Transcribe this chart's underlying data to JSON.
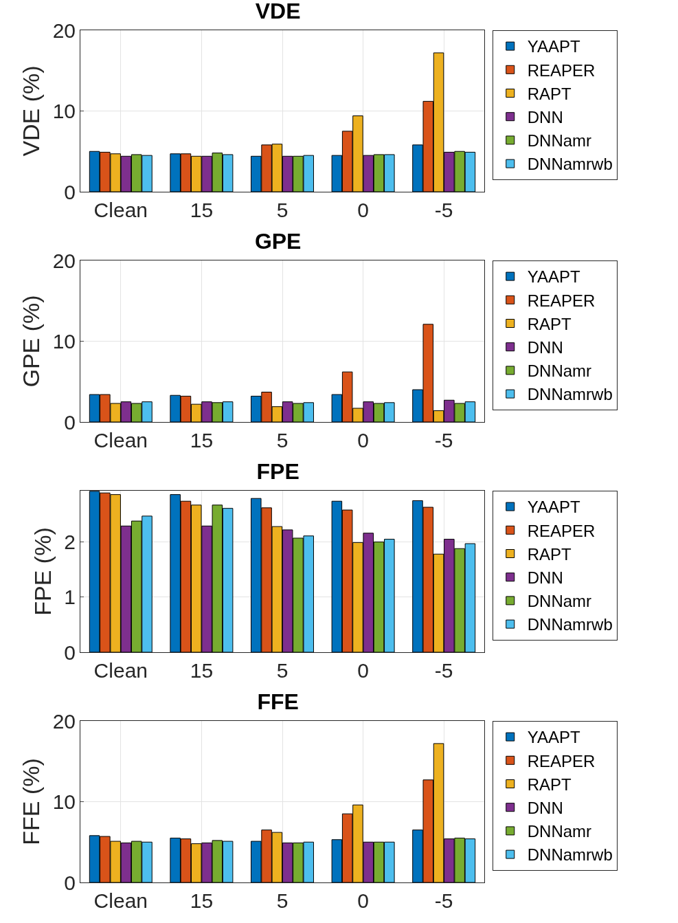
{
  "chart_data": [
    {
      "type": "bar",
      "title": "VDE",
      "ylabel": "VDE (%)",
      "categories": [
        "Clean",
        "15",
        "5",
        "0",
        "-5"
      ],
      "ylim": [
        0,
        20
      ],
      "yticks": [
        0,
        10,
        20
      ],
      "grid": true,
      "legend": "top right",
      "series": [
        {
          "name": "YAAPT",
          "color": "#0072bd",
          "values": [
            5.0,
            4.7,
            4.4,
            4.5,
            5.8
          ]
        },
        {
          "name": "REAPER",
          "color": "#d95319",
          "values": [
            4.9,
            4.7,
            5.8,
            7.5,
            11.2
          ]
        },
        {
          "name": "RAPT",
          "color": "#edb120",
          "values": [
            4.7,
            4.4,
            5.9,
            9.4,
            17.2
          ]
        },
        {
          "name": "DNN",
          "color": "#7e2f8e",
          "values": [
            4.4,
            4.4,
            4.4,
            4.5,
            4.9
          ]
        },
        {
          "name": "DNNamr",
          "color": "#77ac30",
          "values": [
            4.6,
            4.8,
            4.4,
            4.6,
            5.0
          ]
        },
        {
          "name": "DNNamrwb",
          "color": "#4dbeee",
          "values": [
            4.5,
            4.6,
            4.5,
            4.6,
            4.9
          ]
        }
      ]
    },
    {
      "type": "bar",
      "title": "GPE",
      "ylabel": "GPE (%)",
      "categories": [
        "Clean",
        "15",
        "5",
        "0",
        "-5"
      ],
      "ylim": [
        0,
        20
      ],
      "yticks": [
        0,
        10,
        20
      ],
      "grid": true,
      "legend": "top right",
      "series": [
        {
          "name": "YAAPT",
          "color": "#0072bd",
          "values": [
            3.4,
            3.3,
            3.2,
            3.4,
            4.0
          ]
        },
        {
          "name": "REAPER",
          "color": "#d95319",
          "values": [
            3.4,
            3.2,
            3.7,
            6.2,
            12.1
          ]
        },
        {
          "name": "RAPT",
          "color": "#edb120",
          "values": [
            2.3,
            2.2,
            1.9,
            1.7,
            1.4
          ]
        },
        {
          "name": "DNN",
          "color": "#7e2f8e",
          "values": [
            2.5,
            2.5,
            2.5,
            2.5,
            2.7
          ]
        },
        {
          "name": "DNNamr",
          "color": "#77ac30",
          "values": [
            2.3,
            2.4,
            2.3,
            2.3,
            2.3
          ]
        },
        {
          "name": "DNNamrwb",
          "color": "#4dbeee",
          "values": [
            2.5,
            2.5,
            2.4,
            2.4,
            2.5
          ]
        }
      ]
    },
    {
      "type": "bar",
      "title": "FPE",
      "ylabel": "FPE (%)",
      "categories": [
        "Clean",
        "15",
        "5",
        "0",
        "-5"
      ],
      "ylim": [
        0,
        2.93
      ],
      "yticks": [
        0,
        1,
        2
      ],
      "grid": true,
      "legend": "top right",
      "series": [
        {
          "name": "YAAPT",
          "color": "#0072bd",
          "values": [
            2.92,
            2.86,
            2.79,
            2.74,
            2.75
          ]
        },
        {
          "name": "REAPER",
          "color": "#d95319",
          "values": [
            2.89,
            2.74,
            2.62,
            2.58,
            2.63
          ]
        },
        {
          "name": "RAPT",
          "color": "#edb120",
          "values": [
            2.86,
            2.67,
            2.28,
            1.99,
            1.78
          ]
        },
        {
          "name": "DNN",
          "color": "#7e2f8e",
          "values": [
            2.29,
            2.29,
            2.22,
            2.16,
            2.05
          ]
        },
        {
          "name": "DNNamr",
          "color": "#77ac30",
          "values": [
            2.38,
            2.67,
            2.07,
            2.0,
            1.88
          ]
        },
        {
          "name": "DNNamrwb",
          "color": "#4dbeee",
          "values": [
            2.47,
            2.61,
            2.11,
            2.05,
            1.97
          ]
        }
      ]
    },
    {
      "type": "bar",
      "title": "FFE",
      "ylabel": "FFE (%)",
      "categories": [
        "Clean",
        "15",
        "5",
        "0",
        "-5"
      ],
      "ylim": [
        0,
        20
      ],
      "yticks": [
        0,
        10,
        20
      ],
      "grid": true,
      "legend": "top right",
      "series": [
        {
          "name": "YAAPT",
          "color": "#0072bd",
          "values": [
            5.8,
            5.5,
            5.1,
            5.3,
            6.5
          ]
        },
        {
          "name": "REAPER",
          "color": "#d95319",
          "values": [
            5.7,
            5.4,
            6.5,
            8.5,
            12.7
          ]
        },
        {
          "name": "RAPT",
          "color": "#edb120",
          "values": [
            5.1,
            4.8,
            6.2,
            9.6,
            17.2
          ]
        },
        {
          "name": "DNN",
          "color": "#7e2f8e",
          "values": [
            4.9,
            4.9,
            4.9,
            5.0,
            5.4
          ]
        },
        {
          "name": "DNNamr",
          "color": "#77ac30",
          "values": [
            5.1,
            5.2,
            4.9,
            5.0,
            5.5
          ]
        },
        {
          "name": "DNNamrwb",
          "color": "#4dbeee",
          "values": [
            5.0,
            5.1,
            5.0,
            5.0,
            5.4
          ]
        }
      ]
    }
  ]
}
